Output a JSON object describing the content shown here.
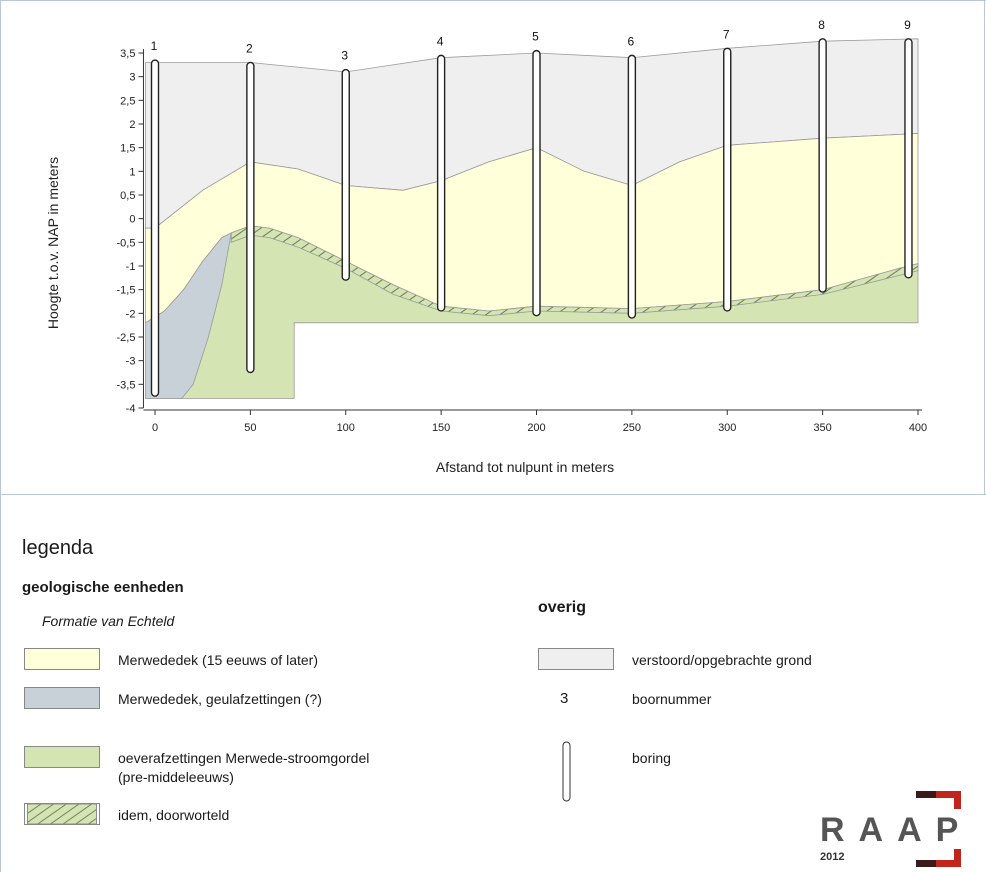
{
  "colors": {
    "grey_layer": "#efefef",
    "yellow_layer": "#ffffd9",
    "blue_layer": "#c8d0d8",
    "green_layer": "#d4e4b2",
    "hatch_line": "#6a7a55",
    "frame": "#b9c7d6",
    "layer_outline": "#9a9a9a",
    "raap_red": "#c0261c"
  },
  "chart_data": {
    "type": "cross-section",
    "xlabel": "Afstand tot nulpunt in meters",
    "ylabel": "Hoogte t.o.v. NAP in meters",
    "xlim": [
      -5,
      400
    ],
    "ylim": [
      -4,
      3.6
    ],
    "x_ticks": [
      0,
      50,
      100,
      150,
      200,
      250,
      300,
      350,
      400
    ],
    "x_tick_labels": [
      "0",
      "50",
      "100",
      "150",
      "200",
      "250",
      "300",
      "350",
      "400"
    ],
    "y_ticks": [
      3.5,
      3,
      2.5,
      2,
      1.5,
      1,
      0.5,
      0,
      -0.5,
      -1,
      -1.5,
      -2,
      -2.5,
      -3,
      -3.5,
      -4
    ],
    "y_tick_labels": [
      "3,5",
      "3",
      "2,5",
      "2",
      "1,5",
      "1",
      "0,5",
      "0",
      "-0,5",
      "-1",
      "-1,5",
      "-2",
      "-2,5",
      "-3",
      "-3,5",
      "-4"
    ],
    "surface": [
      [
        -5,
        3.3
      ],
      [
        50,
        3.3
      ],
      [
        100,
        3.1
      ],
      [
        150,
        3.4
      ],
      [
        200,
        3.5
      ],
      [
        250,
        3.4
      ],
      [
        300,
        3.6
      ],
      [
        350,
        3.75
      ],
      [
        400,
        3.8
      ]
    ],
    "yellow_top": [
      [
        -5,
        -0.2
      ],
      [
        0,
        -0.2
      ],
      [
        25,
        0.6
      ],
      [
        50,
        1.2
      ],
      [
        75,
        1.05
      ],
      [
        100,
        0.7
      ],
      [
        130,
        0.6
      ],
      [
        150,
        0.8
      ],
      [
        175,
        1.2
      ],
      [
        200,
        1.5
      ],
      [
        225,
        1.0
      ],
      [
        250,
        0.7
      ],
      [
        275,
        1.2
      ],
      [
        300,
        1.55
      ],
      [
        350,
        1.7
      ],
      [
        400,
        1.8
      ]
    ],
    "green_top": [
      [
        40,
        -0.3
      ],
      [
        50,
        -0.15
      ],
      [
        60,
        -0.2
      ],
      [
        75,
        -0.4
      ],
      [
        100,
        -0.9
      ],
      [
        125,
        -1.4
      ],
      [
        150,
        -1.85
      ],
      [
        175,
        -1.95
      ],
      [
        200,
        -1.85
      ],
      [
        250,
        -1.9
      ],
      [
        300,
        -1.75
      ],
      [
        350,
        -1.5
      ],
      [
        390,
        -1.05
      ],
      [
        400,
        -0.95
      ]
    ],
    "hatch_bottom": [
      [
        40,
        -0.5
      ],
      [
        50,
        -0.35
      ],
      [
        60,
        -0.4
      ],
      [
        75,
        -0.6
      ],
      [
        100,
        -1.05
      ],
      [
        125,
        -1.6
      ],
      [
        150,
        -1.95
      ],
      [
        175,
        -2.05
      ],
      [
        200,
        -1.95
      ],
      [
        250,
        -2.0
      ],
      [
        300,
        -1.85
      ],
      [
        350,
        -1.6
      ],
      [
        390,
        -1.2
      ],
      [
        400,
        -1.1
      ]
    ],
    "green_base": [
      [
        400,
        -2.2
      ],
      [
        73,
        -2.2
      ],
      [
        73,
        -3.8
      ],
      [
        -5,
        -3.8
      ]
    ],
    "blue_top": [
      [
        -5,
        -2.2
      ],
      [
        5,
        -1.95
      ],
      [
        15,
        -1.5
      ],
      [
        25,
        -0.9
      ],
      [
        35,
        -0.4
      ],
      [
        40,
        -0.3
      ]
    ],
    "blue_bottom": [
      [
        40,
        -0.3
      ],
      [
        35,
        -1.4
      ],
      [
        28,
        -2.5
      ],
      [
        20,
        -3.5
      ],
      [
        14,
        -3.8
      ],
      [
        -5,
        -3.8
      ]
    ],
    "borings": [
      {
        "number": "1",
        "x": 0,
        "top": 3.35,
        "bottom": -3.75
      },
      {
        "number": "2",
        "x": 50,
        "top": 3.3,
        "bottom": -3.25
      },
      {
        "number": "3",
        "x": 100,
        "top": 3.15,
        "bottom": -1.3
      },
      {
        "number": "4",
        "x": 150,
        "top": 3.45,
        "bottom": -1.95
      },
      {
        "number": "5",
        "x": 200,
        "top": 3.55,
        "bottom": -2.05
      },
      {
        "number": "6",
        "x": 250,
        "top": 3.45,
        "bottom": -2.1
      },
      {
        "number": "7",
        "x": 300,
        "top": 3.6,
        "bottom": -1.95
      },
      {
        "number": "8",
        "x": 350,
        "top": 3.8,
        "bottom": -1.55
      },
      {
        "number": "9",
        "x": 395,
        "top": 3.8,
        "bottom": -1.25
      }
    ]
  },
  "legend": {
    "title": "legenda",
    "geo_heading": "geologische eenheden",
    "formation": "Formatie van Echteld",
    "items": [
      {
        "label": "Merwededek (15 eeuws of later)"
      },
      {
        "label": "Merwededek, geulafzettingen (?)"
      },
      {
        "label": "oeverafzettingen Merwede-stroomgordel",
        "label2": "(pre-middeleeuws)"
      },
      {
        "label": "idem, doorworteld"
      }
    ],
    "overig_heading": "overig",
    "overig_items": [
      {
        "label": "verstoord/opgebrachte grond"
      },
      {
        "symbol": "3",
        "label": "boornummer"
      },
      {
        "label": "boring"
      }
    ]
  },
  "logo": {
    "text": "RAAP",
    "year": "2012"
  }
}
